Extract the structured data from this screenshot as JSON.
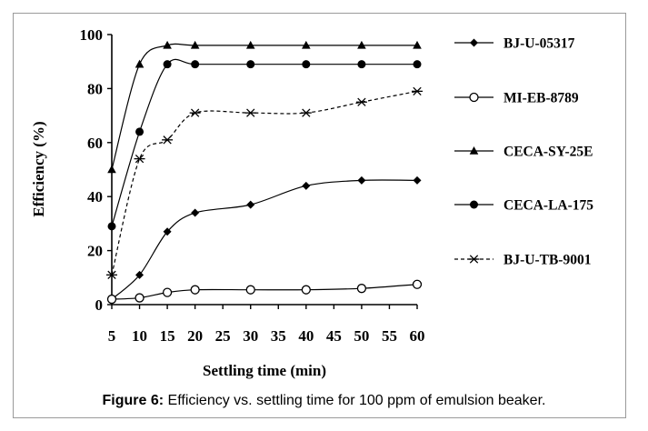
{
  "caption": {
    "label": "Figure 6:",
    "text": "Efficiency vs. settling time for 100 ppm of emulsion beaker."
  },
  "chart_data": {
    "type": "line",
    "xlabel": "Settling time (min)",
    "ylabel": "Efficiency (%)",
    "x_ticks": [
      5,
      10,
      15,
      20,
      25,
      30,
      35,
      40,
      45,
      50,
      55,
      60
    ],
    "y_ticks": [
      0,
      20,
      40,
      60,
      80,
      100
    ],
    "xlim": [
      5,
      60
    ],
    "ylim": [
      0,
      100
    ],
    "legend_position": "right",
    "grid": false,
    "series": [
      {
        "name": "BJ-U-05317",
        "marker": "diamond",
        "dash": false,
        "x": [
          5,
          10,
          15,
          20,
          30,
          40,
          50,
          60
        ],
        "y": [
          2,
          11,
          27,
          34,
          37,
          44,
          46,
          46
        ]
      },
      {
        "name": "MI-EB-8789",
        "marker": "circle-open",
        "dash": false,
        "x": [
          5,
          10,
          15,
          20,
          30,
          40,
          50,
          60
        ],
        "y": [
          2,
          2.5,
          4.5,
          5.5,
          5.5,
          5.5,
          6,
          7.5
        ]
      },
      {
        "name": "CECA-SY-25E",
        "marker": "triangle",
        "dash": false,
        "x": [
          5,
          10,
          15,
          20,
          30,
          40,
          50,
          60
        ],
        "y": [
          50,
          89,
          96,
          96,
          96,
          96,
          96,
          96
        ]
      },
      {
        "name": "CECA-LA-175",
        "marker": "circle-filled",
        "dash": false,
        "x": [
          5,
          10,
          15,
          20,
          30,
          40,
          50,
          60
        ],
        "y": [
          29,
          64,
          89,
          89,
          89,
          89,
          89,
          89
        ]
      },
      {
        "name": "BJ-U-TB-9001",
        "marker": "asterisk",
        "dash": true,
        "x": [
          5,
          10,
          15,
          20,
          30,
          40,
          50,
          60
        ],
        "y": [
          11,
          54,
          61,
          71,
          71,
          71,
          75,
          79
        ]
      }
    ]
  }
}
